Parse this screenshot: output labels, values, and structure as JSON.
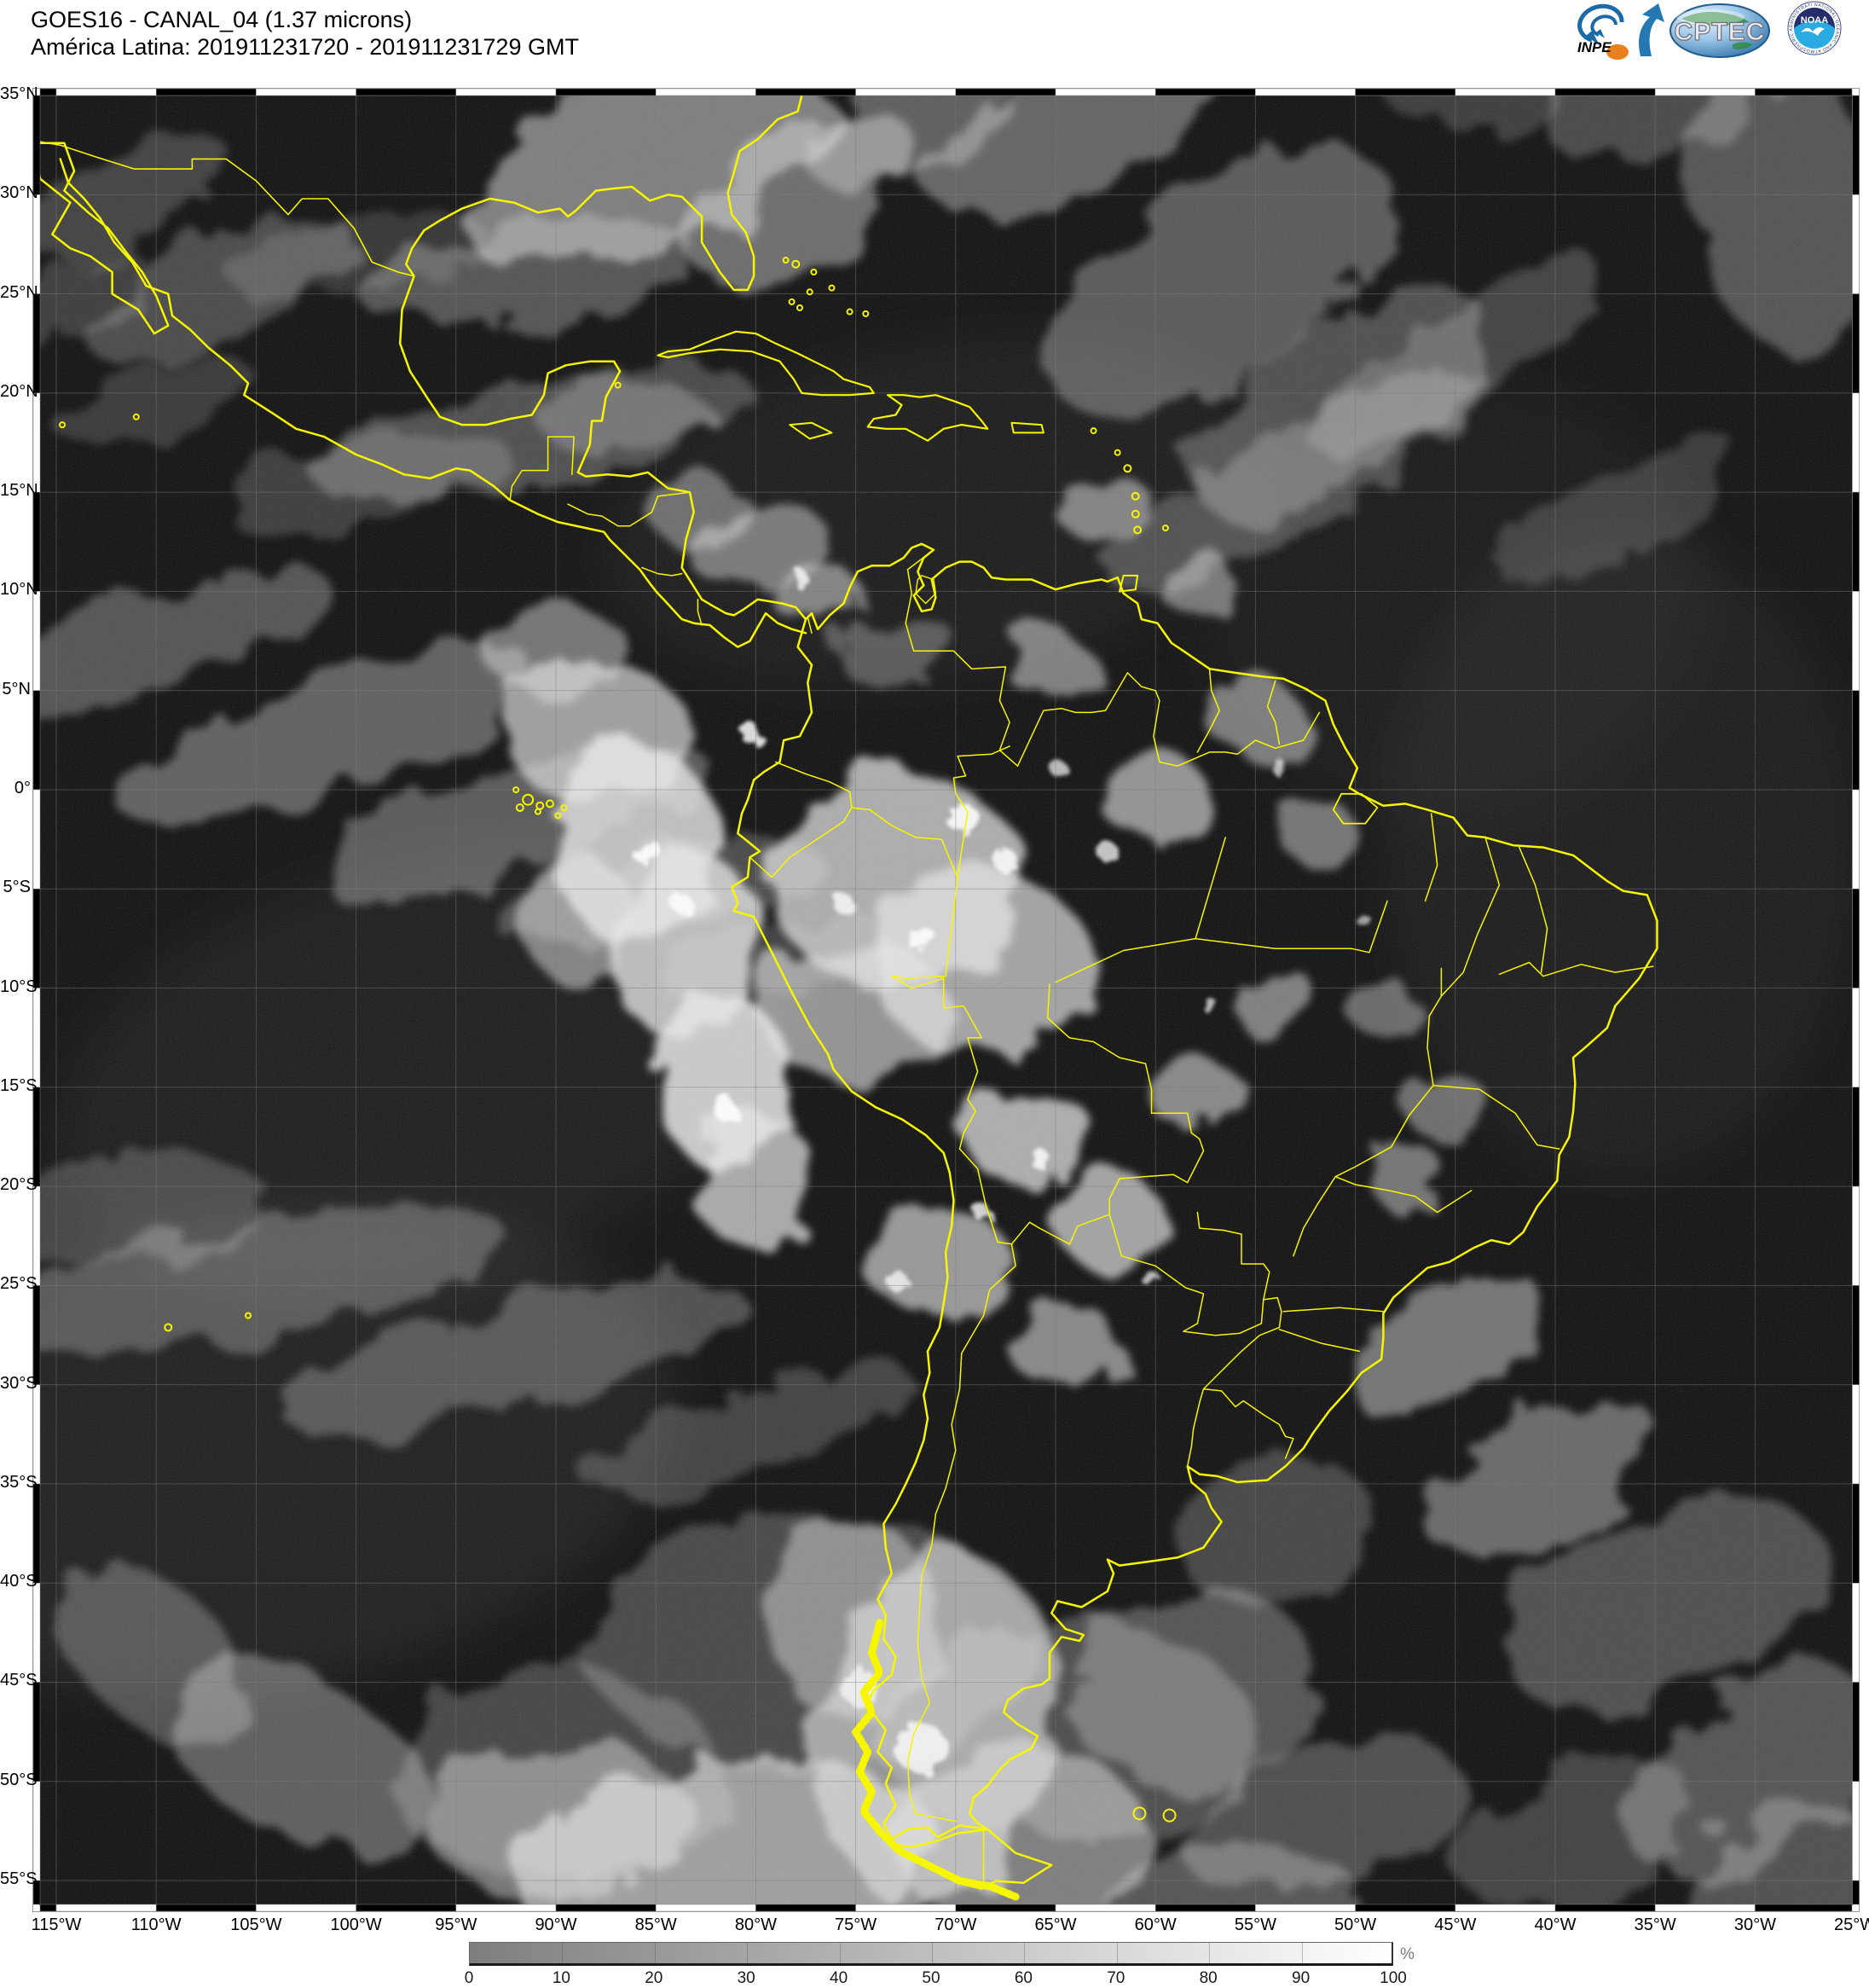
{
  "header": {
    "title_line1": "GOES16 - CANAL_04 (1.37 microns)",
    "title_line2": "América Latina: 201911231720 - 201911231729 GMT"
  },
  "logos": {
    "inpe_label": "INPE",
    "cptec_label": "CPTEC",
    "noaa_label": "NOAA",
    "noaa_ring_text": "NATIONAL OCEANIC AND ATMOSPHERIC ADMINISTRATION · U.S. DEPARTMENT OF COMMERCE"
  },
  "map": {
    "lat_labels": [
      "35°N",
      "30°N",
      "25°N",
      "20°N",
      "15°N",
      "10°N",
      "5°N",
      "0°",
      "5°S",
      "10°S",
      "15°S",
      "20°S",
      "25°S",
      "30°S",
      "35°S",
      "40°S",
      "45°S",
      "50°S",
      "55°S"
    ],
    "lon_labels": [
      "115°W",
      "110°W",
      "105°W",
      "100°W",
      "95°W",
      "90°W",
      "85°W",
      "80°W",
      "75°W",
      "70°W",
      "65°W",
      "60°W",
      "55°W",
      "50°W",
      "45°W",
      "40°W",
      "35°W",
      "30°W",
      "25°W"
    ],
    "grid_step_degrees": 5,
    "outline_color": "#f6f600",
    "background_color": "#060606"
  },
  "colorbar": {
    "ticks": [
      "0",
      "10",
      "20",
      "30",
      "40",
      "50",
      "60",
      "70",
      "80",
      "90",
      "100"
    ],
    "unit": "%",
    "start_color": "#7e7e7e",
    "end_color": "#ffffff"
  }
}
